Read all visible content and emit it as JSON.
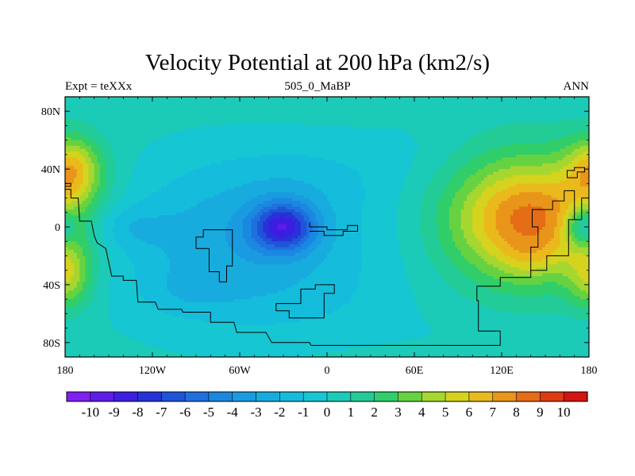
{
  "chart_data": {
    "type": "heatmap",
    "title": "Velocity Potential at 200 hPa (km2/s)",
    "subtitle_left": "Expt = teXXx",
    "subtitle_center": "505_0_MaBP",
    "subtitle_right": "ANN",
    "x_ticks": [
      {
        "value": -180,
        "label": "180"
      },
      {
        "value": -120,
        "label": "120W"
      },
      {
        "value": -60,
        "label": "60W"
      },
      {
        "value": 0,
        "label": "0"
      },
      {
        "value": 60,
        "label": "60E"
      },
      {
        "value": 120,
        "label": "120E"
      },
      {
        "value": 180,
        "label": "180"
      }
    ],
    "y_ticks": [
      {
        "value": 80,
        "label": "80N"
      },
      {
        "value": 40,
        "label": "40N"
      },
      {
        "value": 0,
        "label": "0"
      },
      {
        "value": -40,
        "label": "40S"
      },
      {
        "value": -80,
        "label": "80S"
      }
    ],
    "xlim": [
      -180,
      180
    ],
    "ylim": [
      -90,
      90
    ],
    "levels": [
      -10,
      -9,
      -8,
      -7,
      -6,
      -5,
      -4,
      -3,
      -2,
      -1,
      0,
      1,
      2,
      3,
      4,
      5,
      6,
      7,
      8,
      9,
      10
    ],
    "colorbar_labels": [
      "-10",
      "-9",
      "-8",
      "-7",
      "-6",
      "-5",
      "-4",
      "-3",
      "-2",
      "-1",
      "0",
      "1",
      "2",
      "3",
      "4",
      "5",
      "6",
      "7",
      "8",
      "9",
      "10"
    ],
    "colors": [
      "#7f1ff0",
      "#5f1be8",
      "#3c1ee0",
      "#2733d6",
      "#1f54d8",
      "#1f70de",
      "#1a88e0",
      "#1a9be0",
      "#18acde",
      "#15bcdc",
      "#16c6d2",
      "#1ccab8",
      "#23cc97",
      "#31ce6a",
      "#66d242",
      "#a6d730",
      "#d6d31e",
      "#eab91c",
      "#e9951a",
      "#e46d16",
      "#dd3b12",
      "#d41410"
    ],
    "field_features": [
      {
        "lon": -30,
        "lat": 0,
        "lon_width": 22,
        "lat_width": 17,
        "amplitude": -6.6
      },
      {
        "lon": -140,
        "lat": 0,
        "lon_width": 26,
        "lat_width": 16,
        "amplitude": -1.6
      },
      {
        "lon": -60,
        "lat": -10,
        "lon_width": 95,
        "lat_width": 55,
        "amplitude": -3.2
      },
      {
        "lon": -10,
        "lat": 35,
        "lon_width": 60,
        "lat_width": 25,
        "amplitude": -0.8
      },
      {
        "lon": -95,
        "lat": -45,
        "lon_width": 30,
        "lat_width": 15,
        "amplitude": -0.8
      },
      {
        "lon": -15,
        "lat": -55,
        "lon_width": 80,
        "lat_width": 25,
        "amplitude": -0.5
      },
      {
        "lon": 140,
        "lat": 5,
        "lon_width": 55,
        "lat_width": 42,
        "amplitude": 8.2
      },
      {
        "lon": 138,
        "lat": -22,
        "lon_width": 16,
        "lat_width": 12,
        "amplitude": 0.9
      },
      {
        "lon": 175,
        "lat": 0,
        "lon_width": 12,
        "lat_width": 13,
        "amplitude": -4.5
      },
      {
        "lon": -175,
        "lat": 40,
        "lon_width": 20,
        "lat_width": 22,
        "amplitude": 5.0
      },
      {
        "lon": -178,
        "lat": -35,
        "lon_width": 16,
        "lat_width": 22,
        "amplitude": 3.6
      },
      {
        "lon": 60,
        "lat": 55,
        "lon_width": 40,
        "lat_width": 25,
        "amplitude": -0.4
      },
      {
        "lon": 100,
        "lat": -75,
        "lon_width": 60,
        "lat_width": 15,
        "amplitude": -0.3
      }
    ],
    "field_background": 0.4,
    "land_outline": [
      {
        "name": "north-america",
        "points": [
          [
            -180,
            26
          ],
          [
            -176,
            26
          ],
          [
            -176,
            20
          ],
          [
            -171,
            20
          ],
          [
            -170,
            4
          ],
          [
            -162,
            4
          ],
          [
            -160,
            -6
          ],
          [
            -158,
            -11
          ],
          [
            -152,
            -15
          ],
          [
            -148,
            -34
          ],
          [
            -140,
            -34
          ],
          [
            -140,
            -37
          ],
          [
            -131,
            -37
          ],
          [
            -130,
            -52
          ],
          [
            -118,
            -52
          ],
          [
            -116,
            -57
          ],
          [
            -100,
            -57
          ],
          [
            -99,
            -59
          ],
          [
            -80,
            -59
          ],
          [
            -80,
            -66
          ],
          [
            -64,
            -66
          ],
          [
            -62,
            -73
          ],
          [
            -42,
            -73
          ],
          [
            -38,
            -80
          ],
          [
            -12,
            -80
          ],
          [
            -11,
            -82
          ],
          [
            90,
            -82
          ],
          [
            117,
            -82
          ],
          [
            119,
            -82
          ],
          [
            119,
            -72
          ],
          [
            104,
            -72
          ],
          [
            104,
            -51
          ],
          [
            103,
            -51
          ],
          [
            103,
            -41
          ],
          [
            119,
            -41
          ],
          [
            119,
            -35
          ],
          [
            140,
            -35
          ],
          [
            140,
            -30
          ],
          [
            151,
            -30
          ],
          [
            151,
            -20
          ],
          [
            166,
            -20
          ],
          [
            166,
            5
          ],
          [
            175,
            5
          ],
          [
            175,
            20
          ],
          [
            180,
            20
          ]
        ]
      },
      {
        "name": "south-america",
        "points": [
          [
            -90,
            -15
          ],
          [
            -90,
            -7
          ],
          [
            -85,
            -7
          ],
          [
            -85,
            -2
          ],
          [
            -65,
            -2
          ],
          [
            -65,
            -27
          ],
          [
            -69,
            -27
          ],
          [
            -69,
            -38
          ],
          [
            -74,
            -38
          ],
          [
            -74,
            -31
          ],
          [
            -81,
            -31
          ],
          [
            -81,
            -15
          ],
          [
            -90,
            -15
          ]
        ]
      },
      {
        "name": "africa",
        "points": [
          [
            -12,
            3
          ],
          [
            -12,
            0
          ],
          [
            0,
            0
          ],
          [
            0,
            -2
          ],
          [
            14,
            -2
          ],
          [
            14,
            1
          ],
          [
            21,
            1
          ],
          [
            21,
            -3
          ],
          [
            11,
            -3
          ],
          [
            11,
            -6
          ],
          [
            -2,
            -6
          ],
          [
            -2,
            -3
          ],
          [
            -12,
            -3
          ]
        ]
      },
      {
        "name": "southern-coast",
        "points": [
          [
            -35,
            -58
          ],
          [
            -35,
            -53
          ],
          [
            -18,
            -53
          ],
          [
            -18,
            -43
          ],
          [
            -8,
            -43
          ],
          [
            -8,
            -40
          ],
          [
            5,
            -40
          ],
          [
            5,
            -46
          ],
          [
            -2,
            -46
          ],
          [
            -2,
            -63
          ],
          [
            -26,
            -63
          ],
          [
            -26,
            -58
          ],
          [
            -35,
            -58
          ]
        ]
      },
      {
        "name": "australia",
        "points": [
          [
            140,
            -30
          ],
          [
            140,
            -14
          ],
          [
            145,
            -14
          ],
          [
            145,
            0
          ],
          [
            141,
            0
          ],
          [
            141,
            12
          ],
          [
            155,
            12
          ],
          [
            155,
            18
          ],
          [
            163,
            18
          ],
          [
            163,
            25
          ],
          [
            170,
            25
          ],
          [
            170,
            5
          ]
        ]
      },
      {
        "name": "northeast-islands",
        "points": [
          [
            165,
            34
          ],
          [
            165,
            39
          ],
          [
            170,
            39
          ],
          [
            170,
            41
          ],
          [
            177,
            41
          ],
          [
            177,
            38
          ],
          [
            172,
            38
          ],
          [
            172,
            34
          ],
          [
            165,
            34
          ]
        ]
      },
      {
        "name": "west-coast-fragment",
        "points": [
          [
            -180,
            30
          ],
          [
            -176,
            30
          ],
          [
            -176,
            28
          ],
          [
            -180,
            28
          ]
        ]
      }
    ]
  }
}
